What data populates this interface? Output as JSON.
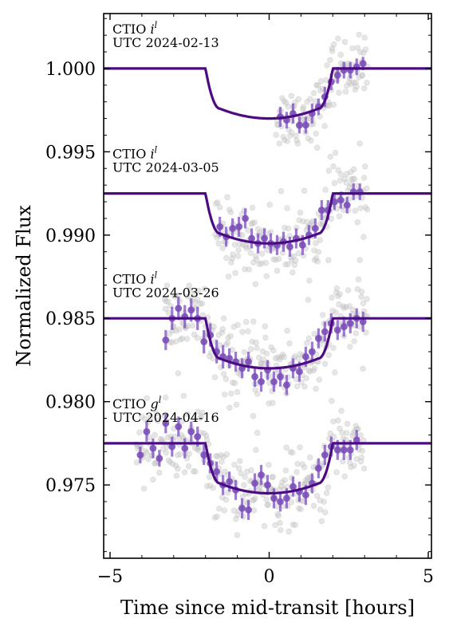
{
  "chart_data": {
    "type": "scatter",
    "xlabel": "Time since mid-transit [hours]",
    "ylabel": "Normalized Flux",
    "xlim": [
      -5.2,
      5.1
    ],
    "ylim": [
      0.9706,
      1.0033
    ],
    "x_ticks": [
      -5,
      0,
      5
    ],
    "x_tick_labels": [
      "−5",
      "0",
      "5"
    ],
    "y_ticks": [
      0.975,
      0.98,
      0.985,
      0.99,
      0.995,
      1.0
    ],
    "y_tick_labels": [
      "0.975",
      "0.980",
      "0.985",
      "0.990",
      "0.995",
      "1.000"
    ],
    "grid": false,
    "model_color": "#4b0c82",
    "binned_color": "#7b4fb8",
    "raw_color": "#c8c8c8",
    "model": {
      "ingress_start": -2.0,
      "ingress_end": -1.55,
      "egress_start": 1.55,
      "egress_end": 2.0,
      "depth": 0.003
    },
    "panels": [
      {
        "instrument": "CTIO",
        "filter": "i",
        "filter_sup": "l",
        "date": "UTC 2024-02-13",
        "baseline": 1.0,
        "raw_x_range": [
          0.2,
          3.1
        ],
        "raw_scatter": 0.0016,
        "binned": [
          {
            "x": 0.35,
            "y": 0.9971,
            "err": 0.0006
          },
          {
            "x": 0.55,
            "y": 0.9969,
            "err": 0.0005
          },
          {
            "x": 0.75,
            "y": 0.9973,
            "err": 0.0006
          },
          {
            "x": 0.95,
            "y": 0.9966,
            "err": 0.0005
          },
          {
            "x": 1.15,
            "y": 0.9966,
            "err": 0.0005
          },
          {
            "x": 1.35,
            "y": 0.9973,
            "err": 0.0006
          },
          {
            "x": 1.55,
            "y": 0.9977,
            "err": 0.0005
          },
          {
            "x": 1.75,
            "y": 0.9983,
            "err": 0.0006
          },
          {
            "x": 1.95,
            "y": 0.9992,
            "err": 0.0005
          },
          {
            "x": 2.15,
            "y": 0.9996,
            "err": 0.0005
          },
          {
            "x": 2.35,
            "y": 0.9999,
            "err": 0.0005
          },
          {
            "x": 2.55,
            "y": 0.9999,
            "err": 0.0005
          },
          {
            "x": 2.75,
            "y": 1.0001,
            "err": 0.0005
          },
          {
            "x": 2.95,
            "y": 1.0003,
            "err": 0.0004
          }
        ]
      },
      {
        "instrument": "CTIO",
        "filter": "i",
        "filter_sup": "l",
        "date": "UTC 2024-03-05",
        "baseline": 0.9925,
        "raw_x_range": [
          -1.7,
          3.1
        ],
        "raw_scatter": 0.0018,
        "binned": [
          {
            "x": -1.55,
            "y": 0.9905,
            "err": 0.0006
          },
          {
            "x": -1.35,
            "y": 0.9899,
            "err": 0.0006
          },
          {
            "x": -1.15,
            "y": 0.9904,
            "err": 0.0006
          },
          {
            "x": -0.95,
            "y": 0.9905,
            "err": 0.0006
          },
          {
            "x": -0.75,
            "y": 0.991,
            "err": 0.0006
          },
          {
            "x": -0.55,
            "y": 0.9898,
            "err": 0.0006
          },
          {
            "x": -0.35,
            "y": 0.9895,
            "err": 0.0006
          },
          {
            "x": -0.15,
            "y": 0.9898,
            "err": 0.0006
          },
          {
            "x": 0.05,
            "y": 0.9895,
            "err": 0.0006
          },
          {
            "x": 0.25,
            "y": 0.9894,
            "err": 0.0006
          },
          {
            "x": 0.45,
            "y": 0.9896,
            "err": 0.0006
          },
          {
            "x": 0.65,
            "y": 0.9893,
            "err": 0.0006
          },
          {
            "x": 0.85,
            "y": 0.9898,
            "err": 0.0006
          },
          {
            "x": 1.05,
            "y": 0.9894,
            "err": 0.0006
          },
          {
            "x": 1.25,
            "y": 0.99,
            "err": 0.0006
          },
          {
            "x": 1.45,
            "y": 0.9904,
            "err": 0.0006
          },
          {
            "x": 1.65,
            "y": 0.9915,
            "err": 0.0006
          },
          {
            "x": 1.85,
            "y": 0.9915,
            "err": 0.0006
          },
          {
            "x": 2.05,
            "y": 0.992,
            "err": 0.0005
          },
          {
            "x": 2.25,
            "y": 0.9921,
            "err": 0.0005
          },
          {
            "x": 2.45,
            "y": 0.9918,
            "err": 0.0005
          },
          {
            "x": 2.65,
            "y": 0.9926,
            "err": 0.0005
          },
          {
            "x": 2.85,
            "y": 0.9926,
            "err": 0.0005
          }
        ]
      },
      {
        "instrument": "CTIO",
        "filter": "i",
        "filter_sup": "l",
        "date": "UTC 2024-03-26",
        "baseline": 0.985,
        "raw_x_range": [
          -3.3,
          3.1
        ],
        "raw_scatter": 0.0019,
        "binned": [
          {
            "x": -3.25,
            "y": 0.9837,
            "err": 0.0006
          },
          {
            "x": -3.05,
            "y": 0.985,
            "err": 0.0007
          },
          {
            "x": -2.85,
            "y": 0.9856,
            "err": 0.0007
          },
          {
            "x": -2.65,
            "y": 0.9851,
            "err": 0.0007
          },
          {
            "x": -2.45,
            "y": 0.9855,
            "err": 0.0007
          },
          {
            "x": -2.25,
            "y": 0.985,
            "err": 0.0007
          },
          {
            "x": -2.05,
            "y": 0.9836,
            "err": 0.0007
          },
          {
            "x": -1.85,
            "y": 0.984,
            "err": 0.0007
          },
          {
            "x": -1.65,
            "y": 0.983,
            "err": 0.0007
          },
          {
            "x": -1.45,
            "y": 0.9827,
            "err": 0.0007
          },
          {
            "x": -1.25,
            "y": 0.9826,
            "err": 0.0006
          },
          {
            "x": -1.05,
            "y": 0.9824,
            "err": 0.0006
          },
          {
            "x": -0.85,
            "y": 0.982,
            "err": 0.0006
          },
          {
            "x": -0.65,
            "y": 0.9824,
            "err": 0.0006
          },
          {
            "x": -0.45,
            "y": 0.9815,
            "err": 0.0006
          },
          {
            "x": -0.25,
            "y": 0.9812,
            "err": 0.0006
          },
          {
            "x": -0.05,
            "y": 0.9819,
            "err": 0.0006
          },
          {
            "x": 0.15,
            "y": 0.9812,
            "err": 0.0006
          },
          {
            "x": 0.35,
            "y": 0.9815,
            "err": 0.0006
          },
          {
            "x": 0.55,
            "y": 0.981,
            "err": 0.0006
          },
          {
            "x": 0.75,
            "y": 0.982,
            "err": 0.0006
          },
          {
            "x": 0.95,
            "y": 0.9818,
            "err": 0.0006
          },
          {
            "x": 1.15,
            "y": 0.9827,
            "err": 0.0006
          },
          {
            "x": 1.35,
            "y": 0.983,
            "err": 0.0006
          },
          {
            "x": 1.55,
            "y": 0.9838,
            "err": 0.0006
          },
          {
            "x": 1.75,
            "y": 0.9842,
            "err": 0.0006
          },
          {
            "x": 1.95,
            "y": 0.9847,
            "err": 0.0006
          },
          {
            "x": 2.15,
            "y": 0.9843,
            "err": 0.0006
          },
          {
            "x": 2.35,
            "y": 0.9845,
            "err": 0.0006
          },
          {
            "x": 2.55,
            "y": 0.9847,
            "err": 0.0006
          },
          {
            "x": 2.75,
            "y": 0.985,
            "err": 0.0006
          },
          {
            "x": 2.95,
            "y": 0.9848,
            "err": 0.0006
          }
        ]
      },
      {
        "instrument": "CTIO",
        "filter": "g",
        "filter_sup": "l",
        "date": "UTC 2024-04-16",
        "baseline": 0.9775,
        "raw_x_range": [
          -4.2,
          3.0
        ],
        "raw_scatter": 0.0019,
        "binned": [
          {
            "x": -4.05,
            "y": 0.9768,
            "err": 0.0005
          },
          {
            "x": -3.85,
            "y": 0.9782,
            "err": 0.0006
          },
          {
            "x": -3.65,
            "y": 0.9772,
            "err": 0.0006
          },
          {
            "x": -3.45,
            "y": 0.9766,
            "err": 0.0005
          },
          {
            "x": -3.25,
            "y": 0.9787,
            "err": 0.0006
          },
          {
            "x": -3.05,
            "y": 0.9773,
            "err": 0.0006
          },
          {
            "x": -2.85,
            "y": 0.9785,
            "err": 0.0006
          },
          {
            "x": -2.65,
            "y": 0.9772,
            "err": 0.0006
          },
          {
            "x": -2.45,
            "y": 0.9782,
            "err": 0.0006
          },
          {
            "x": -2.25,
            "y": 0.9779,
            "err": 0.0006
          },
          {
            "x": -2.05,
            "y": 0.9768,
            "err": 0.0006
          },
          {
            "x": -1.85,
            "y": 0.9763,
            "err": 0.0006
          },
          {
            "x": -1.65,
            "y": 0.9758,
            "err": 0.0006
          },
          {
            "x": -1.45,
            "y": 0.975,
            "err": 0.0006
          },
          {
            "x": -1.25,
            "y": 0.9752,
            "err": 0.0006
          },
          {
            "x": -1.05,
            "y": 0.9747,
            "err": 0.0006
          },
          {
            "x": -0.85,
            "y": 0.9736,
            "err": 0.0006
          },
          {
            "x": -0.65,
            "y": 0.9735,
            "err": 0.0006
          },
          {
            "x": -0.45,
            "y": 0.9751,
            "err": 0.0006
          },
          {
            "x": -0.25,
            "y": 0.9756,
            "err": 0.0006
          },
          {
            "x": -0.05,
            "y": 0.975,
            "err": 0.0006
          },
          {
            "x": 0.15,
            "y": 0.9742,
            "err": 0.0006
          },
          {
            "x": 0.35,
            "y": 0.974,
            "err": 0.0006
          },
          {
            "x": 0.55,
            "y": 0.9742,
            "err": 0.0006
          },
          {
            "x": 0.75,
            "y": 0.9749,
            "err": 0.0006
          },
          {
            "x": 0.95,
            "y": 0.9746,
            "err": 0.0006
          },
          {
            "x": 1.15,
            "y": 0.9744,
            "err": 0.0006
          },
          {
            "x": 1.35,
            "y": 0.9751,
            "err": 0.0006
          },
          {
            "x": 1.55,
            "y": 0.976,
            "err": 0.0006
          },
          {
            "x": 1.75,
            "y": 0.9768,
            "err": 0.0006
          },
          {
            "x": 1.95,
            "y": 0.9773,
            "err": 0.0006
          },
          {
            "x": 2.15,
            "y": 0.9771,
            "err": 0.0006
          },
          {
            "x": 2.35,
            "y": 0.9771,
            "err": 0.0006
          },
          {
            "x": 2.55,
            "y": 0.9771,
            "err": 0.0006
          },
          {
            "x": 2.75,
            "y": 0.9777,
            "err": 0.0006
          }
        ]
      }
    ]
  }
}
